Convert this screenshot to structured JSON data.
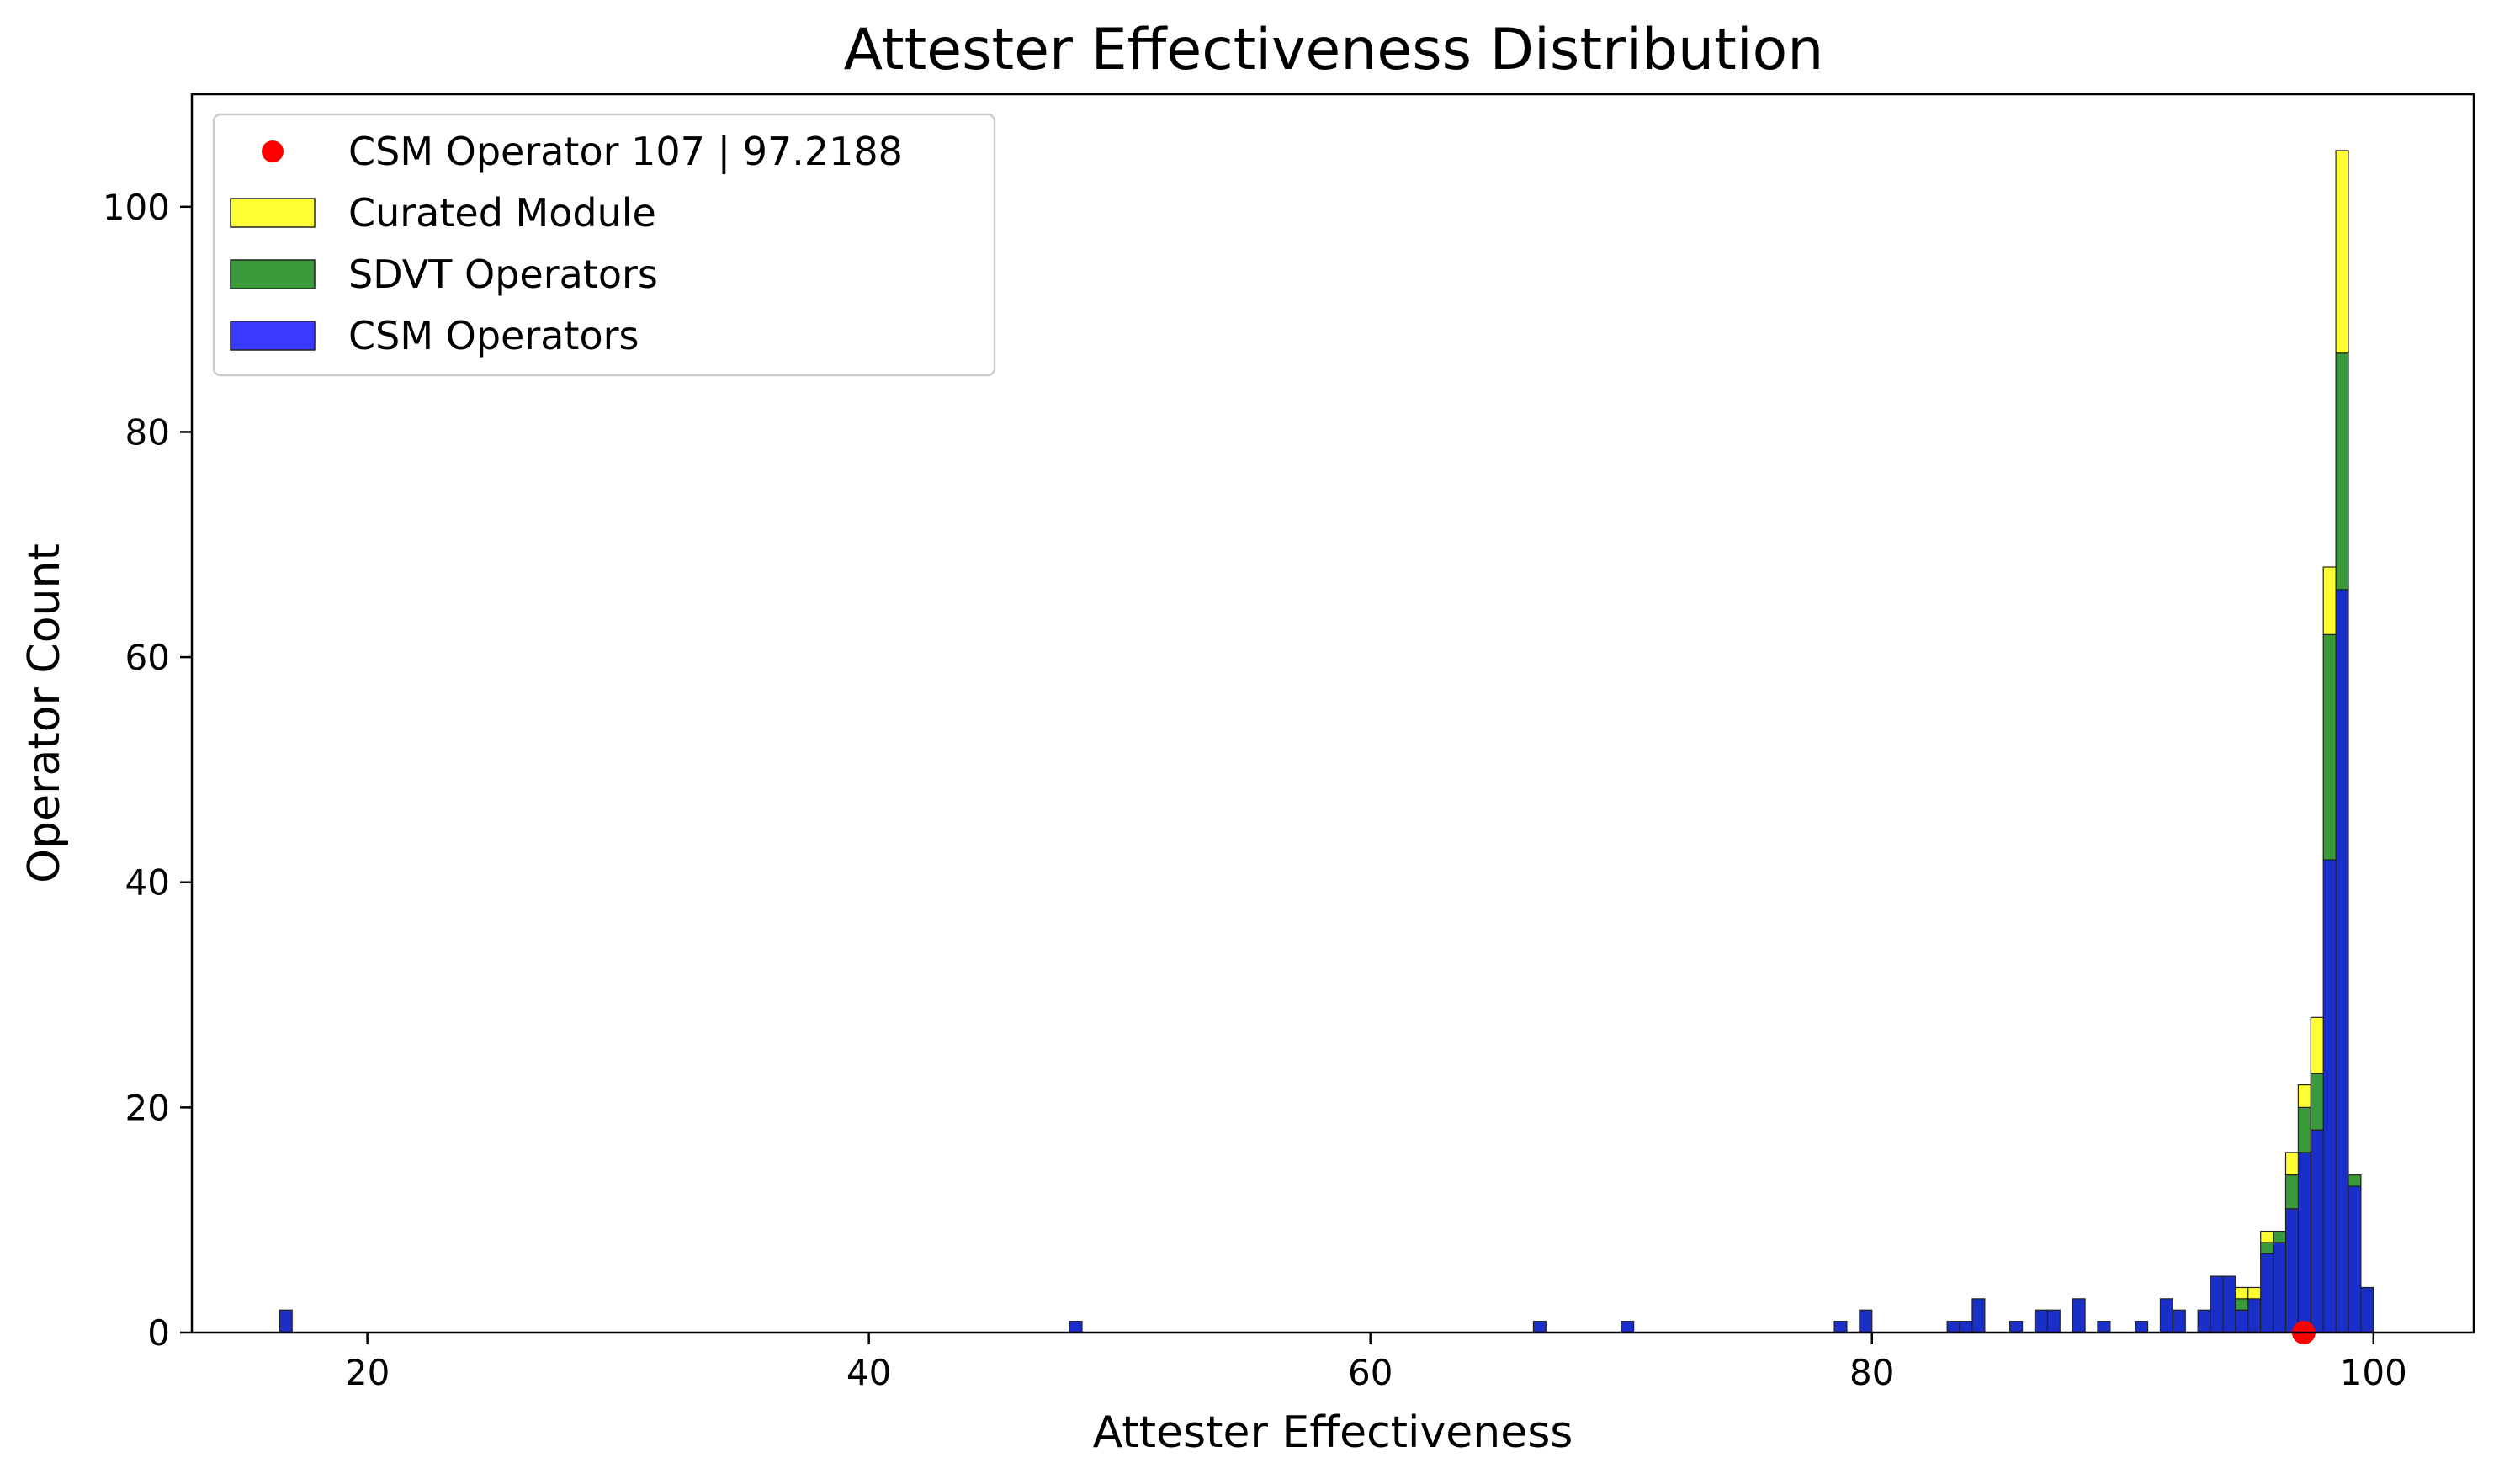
{
  "chart_data": {
    "type": "bar",
    "stacked": true,
    "title": "Attester Effectiveness Distribution",
    "xlabel": "Attester Effectiveness",
    "ylabel": "Operator Count",
    "xlim": [
      13,
      104
    ],
    "ylim": [
      0,
      110
    ],
    "bin_width": 0.5,
    "x_ticks": [
      20,
      40,
      60,
      80,
      100
    ],
    "y_ticks": [
      0,
      20,
      40,
      60,
      80,
      100
    ],
    "grid": false,
    "legend_position": "top-left",
    "highlight": {
      "label": "CSM Operator 107  |  97.2188",
      "x": 97.2188,
      "y": 0,
      "color": "#ff0000"
    },
    "legend": [
      {
        "label": "CSM Operator 107  |  97.2188",
        "kind": "point",
        "color": "#ff0000"
      },
      {
        "label": "Curated Module",
        "kind": "patch",
        "color": "#ffff33"
      },
      {
        "label": "SDVT Operators",
        "kind": "patch",
        "color": "#3a9a3a"
      },
      {
        "label": "CSM Operators",
        "kind": "patch",
        "color": "#3a3aff"
      }
    ],
    "series": [
      {
        "name": "CSM Operators",
        "color": "#1a2fc8",
        "points": [
          [
            16.75,
            2
          ],
          [
            48.25,
            1
          ],
          [
            66.75,
            1
          ],
          [
            70.25,
            1
          ],
          [
            78.75,
            1
          ],
          [
            79.75,
            2
          ],
          [
            83.25,
            1
          ],
          [
            83.75,
            1
          ],
          [
            84.25,
            3
          ],
          [
            85.75,
            1
          ],
          [
            86.75,
            2
          ],
          [
            87.25,
            2
          ],
          [
            88.25,
            3
          ],
          [
            89.25,
            1
          ],
          [
            90.75,
            1
          ],
          [
            91.75,
            3
          ],
          [
            92.25,
            2
          ],
          [
            93.25,
            2
          ],
          [
            93.75,
            5
          ],
          [
            94.25,
            5
          ],
          [
            94.75,
            2
          ],
          [
            95.25,
            3
          ],
          [
            95.75,
            7
          ],
          [
            96.25,
            8
          ],
          [
            96.75,
            11
          ],
          [
            97.25,
            16
          ],
          [
            97.75,
            18
          ],
          [
            98.25,
            42
          ],
          [
            98.75,
            66
          ],
          [
            99.25,
            13
          ],
          [
            99.75,
            4
          ]
        ]
      },
      {
        "name": "SDVT Operators",
        "color": "#3a9a3a",
        "points": [
          [
            94.75,
            1
          ],
          [
            95.75,
            1
          ],
          [
            96.25,
            1
          ],
          [
            96.75,
            3
          ],
          [
            97.25,
            4
          ],
          [
            97.75,
            5
          ],
          [
            98.25,
            20
          ],
          [
            98.75,
            21
          ],
          [
            99.25,
            1
          ]
        ]
      },
      {
        "name": "Curated Module",
        "color": "#ffff33",
        "points": [
          [
            94.75,
            1
          ],
          [
            95.25,
            1
          ],
          [
            95.75,
            1
          ],
          [
            96.75,
            2
          ],
          [
            97.25,
            2
          ],
          [
            97.75,
            5
          ],
          [
            98.25,
            6
          ],
          [
            98.75,
            18
          ]
        ]
      }
    ]
  }
}
